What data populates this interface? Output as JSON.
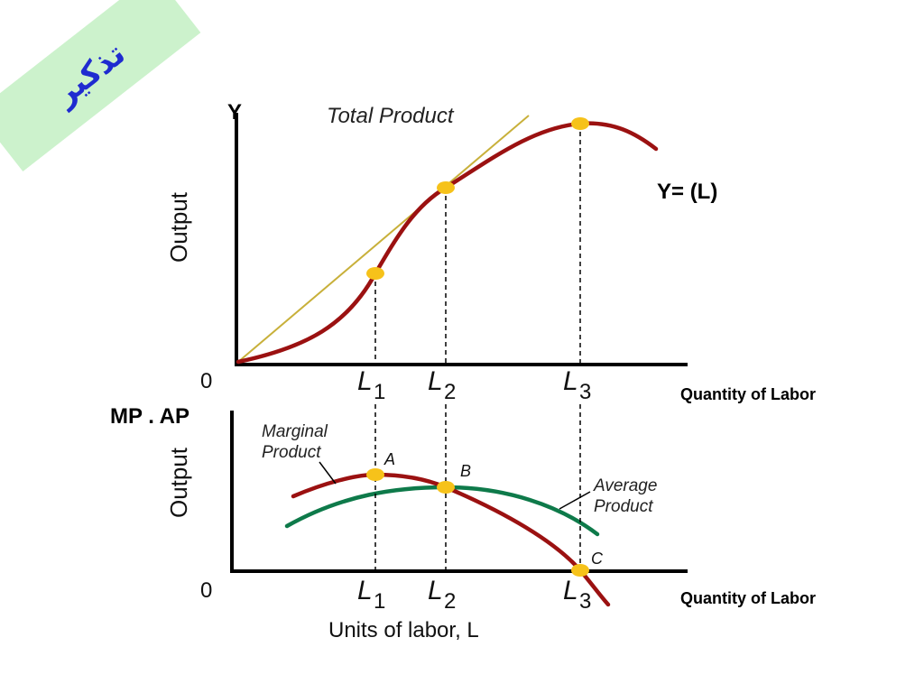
{
  "banner": {
    "text": "تذكير",
    "fill": "#ccf2cc",
    "text_color": "#1f2bd0"
  },
  "top_chart": {
    "y_axis_letter": "Y",
    "y_axis_label": "Output",
    "origin": "0",
    "curve_label": "Total Product",
    "function_label": "Y= (L)",
    "x_axis_caption": "Quantity of Labor",
    "ticks": [
      {
        "name": "L",
        "sub": "1"
      },
      {
        "name": "L",
        "sub": "2"
      },
      {
        "name": "L",
        "sub": "3"
      }
    ]
  },
  "bottom_chart": {
    "title": "MP . AP",
    "y_axis_label": "Output",
    "origin": "0",
    "x_axis_caption": "Quantity of Labor",
    "x_axis_label": "Units of labor, L",
    "ticks": [
      {
        "name": "L",
        "sub": "1"
      },
      {
        "name": "L",
        "sub": "2"
      },
      {
        "name": "L",
        "sub": "3"
      }
    ],
    "mp_label_line1": "Marginal",
    "mp_label_line2": "Product",
    "ap_label_line1": "Average",
    "ap_label_line2": "Product",
    "point_a": "A",
    "point_b": "B",
    "point_c": "C"
  },
  "colors": {
    "curve": "#9b1111",
    "average": "#0e7a4a",
    "point": "#f6c21a",
    "ray": "#c8b03a",
    "axis": "#000000"
  }
}
